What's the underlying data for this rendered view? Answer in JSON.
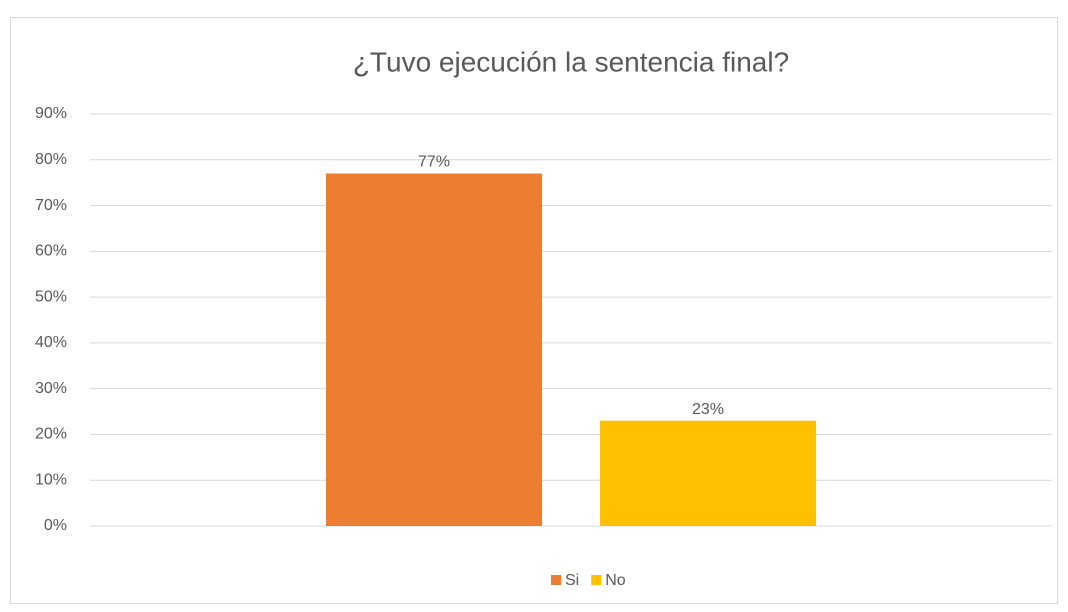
{
  "chart_data": {
    "type": "bar",
    "title": "¿Tuvo ejecución la sentencia final?",
    "categories": [
      null
    ],
    "series": [
      {
        "name": "Si",
        "color": "#ed7d31",
        "values": [
          77
        ],
        "value_labels": [
          "77%"
        ]
      },
      {
        "name": "No",
        "color": "#ffc000",
        "values": [
          23
        ],
        "value_labels": [
          "23%"
        ]
      }
    ],
    "ylim": [
      0,
      90
    ],
    "yticks": [
      {
        "value": 0,
        "label": "0%"
      },
      {
        "value": 10,
        "label": "10%"
      },
      {
        "value": 20,
        "label": "20%"
      },
      {
        "value": 30,
        "label": "30%"
      },
      {
        "value": 40,
        "label": "40%"
      },
      {
        "value": 50,
        "label": "50%"
      },
      {
        "value": 60,
        "label": "60%"
      },
      {
        "value": 70,
        "label": "70%"
      },
      {
        "value": 80,
        "label": "80%"
      },
      {
        "value": 90,
        "label": "90%"
      }
    ],
    "grid": true,
    "legend": "bottom"
  }
}
